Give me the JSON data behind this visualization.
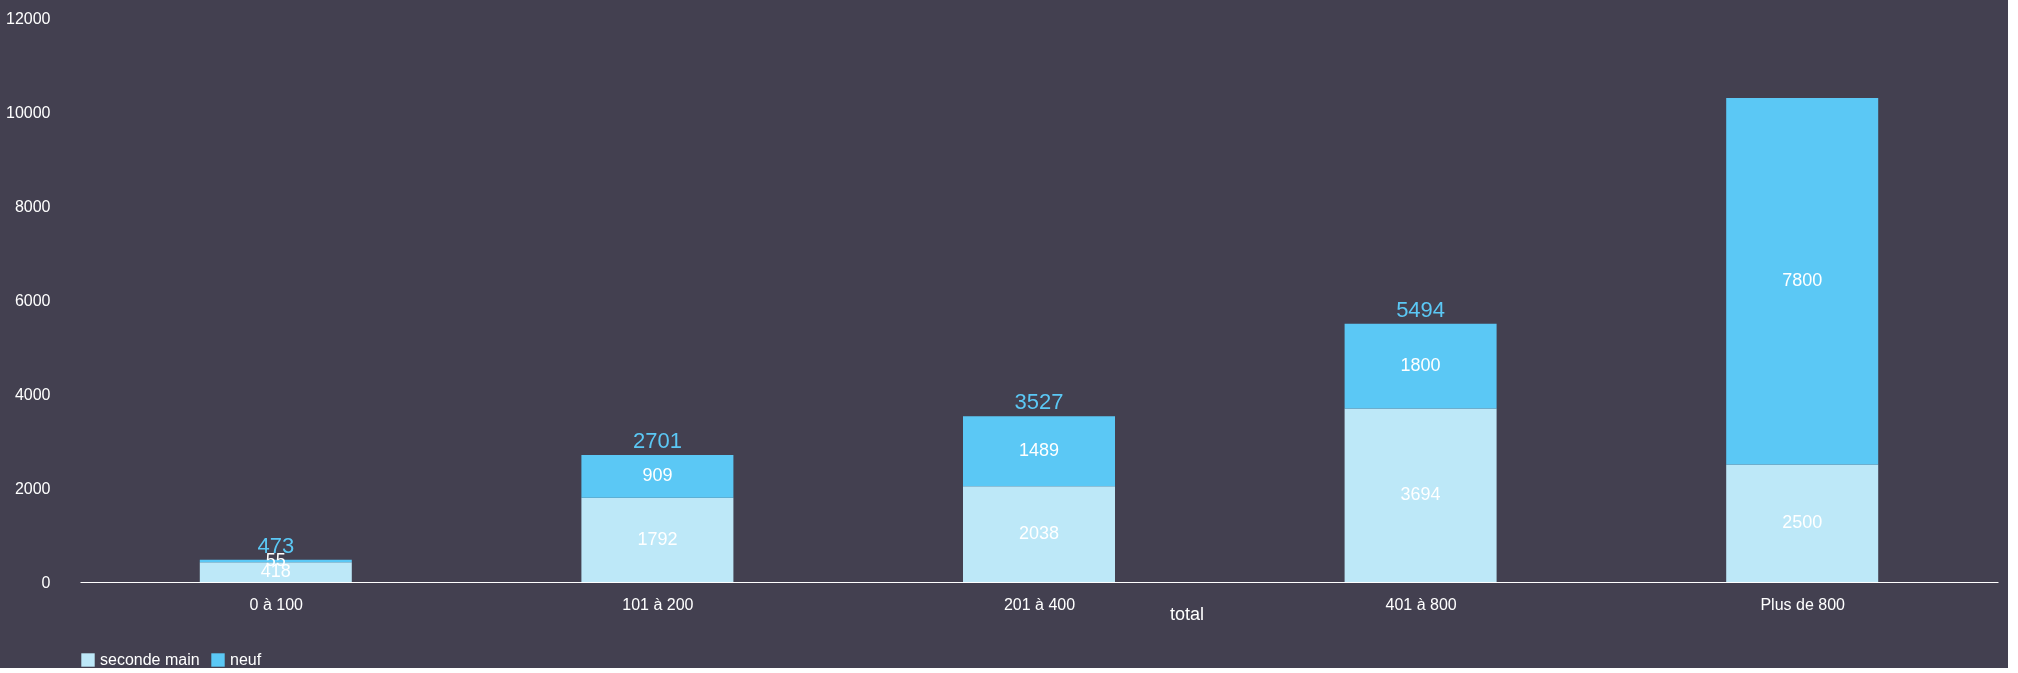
{
  "chart_data": {
    "type": "bar",
    "stacked": true,
    "categories": [
      "0 à 100",
      "101 à 200",
      "201 à 400",
      "401 à 800",
      "Plus de 800"
    ],
    "series": [
      {
        "name": "seconde main",
        "color": "#bde8f8",
        "values": [
          418,
          1792,
          2038,
          3694,
          2500
        ]
      },
      {
        "name": "neuf",
        "color": "#5bc8f5",
        "values": [
          55,
          909,
          1489,
          1800,
          7800
        ]
      }
    ],
    "totals": [
      "473",
      "2701",
      "3527",
      "5494",
      null
    ],
    "annotations": [
      "total"
    ],
    "ylim": [
      0,
      12000
    ],
    "yticks": [
      0,
      2000,
      4000,
      6000,
      8000,
      10000,
      12000
    ],
    "data_labels": true,
    "grid": false,
    "legend": "bottom"
  }
}
